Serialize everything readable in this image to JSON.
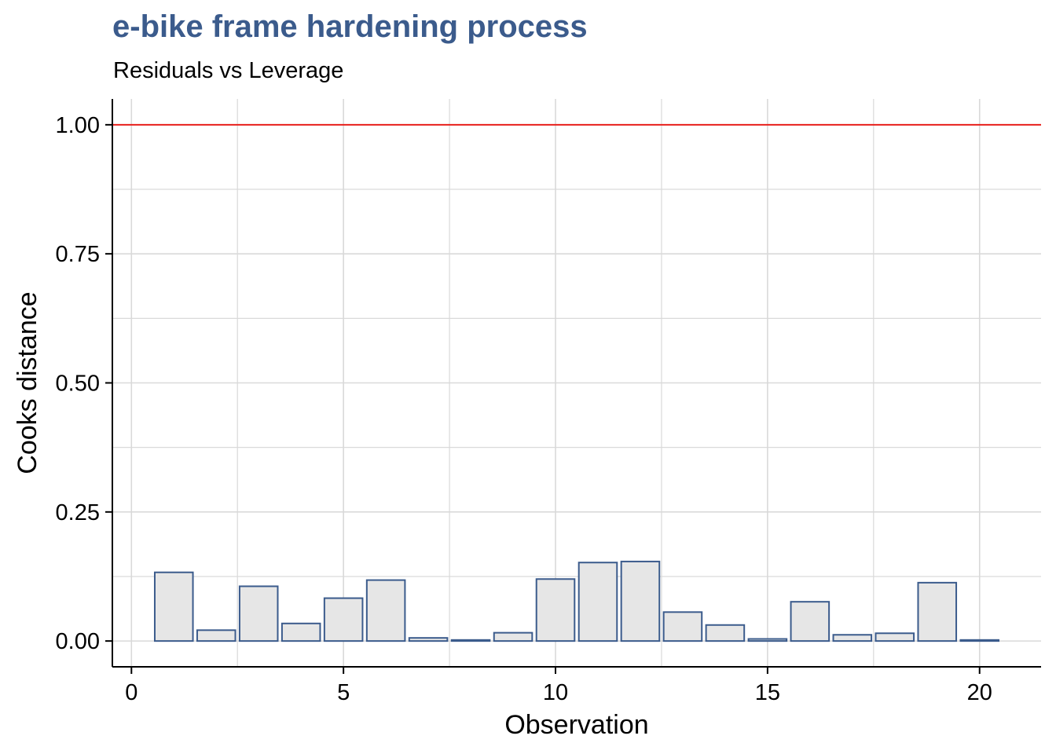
{
  "chart_data": {
    "type": "bar",
    "title": "e-bike frame hardening process",
    "subtitle": "Residuals vs Leverage",
    "xlabel": "Observation",
    "ylabel": "Cooks distance",
    "x": [
      1,
      2,
      3,
      4,
      5,
      6,
      7,
      8,
      9,
      10,
      11,
      12,
      13,
      14,
      15,
      16,
      17,
      18,
      19,
      20
    ],
    "values": [
      0.133,
      0.021,
      0.106,
      0.034,
      0.083,
      0.118,
      0.006,
      0.002,
      0.016,
      0.12,
      0.152,
      0.154,
      0.056,
      0.031,
      0.004,
      0.076,
      0.012,
      0.015,
      0.113,
      0.002
    ],
    "xlim": [
      -0.45,
      21.45
    ],
    "ylim": [
      -0.05,
      1.05
    ],
    "xticks": [
      0,
      5,
      10,
      15,
      20
    ],
    "yticks": [
      0.0,
      0.25,
      0.5,
      0.75,
      1.0
    ],
    "xtick_labels": [
      "0",
      "5",
      "10",
      "15",
      "20"
    ],
    "ytick_labels": [
      "0.00",
      "0.25",
      "0.50",
      "0.75",
      "1.00"
    ],
    "reference_line": {
      "y": 1.0,
      "color": "#e8201c"
    },
    "grid": true,
    "colors": {
      "bar_fill": "#e6e6e6",
      "bar_stroke": "#3b5b8c",
      "grid": "#d9d9d9",
      "title": "#3b5b8c"
    }
  }
}
